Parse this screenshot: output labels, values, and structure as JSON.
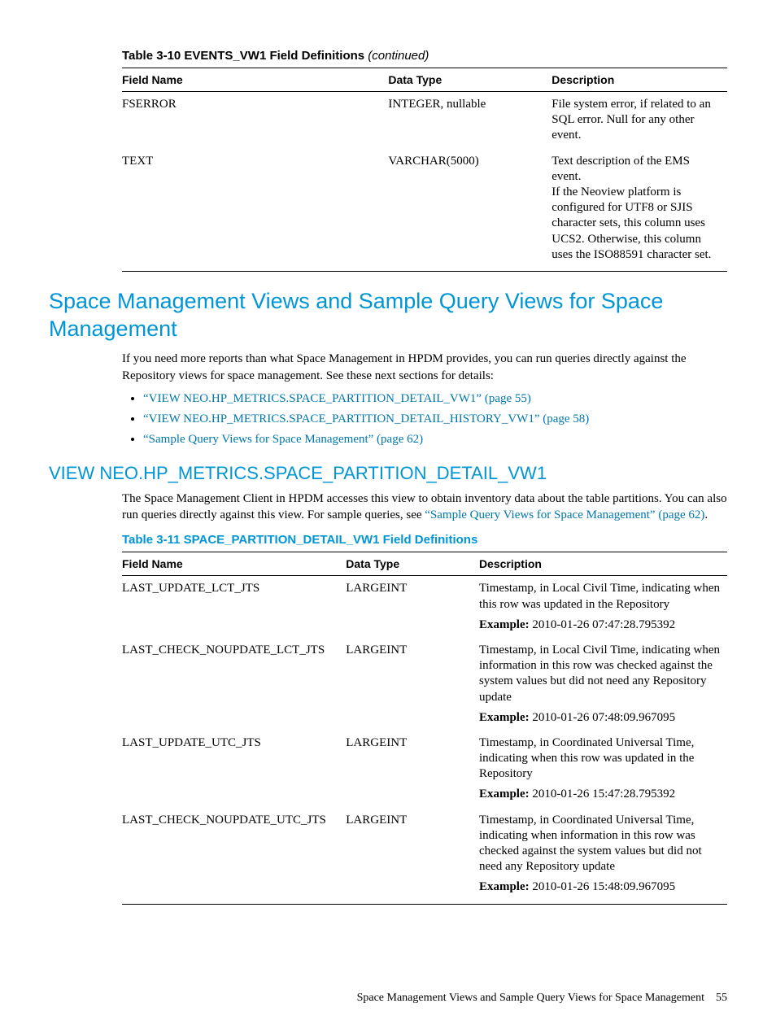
{
  "table1": {
    "caption_prefix": "Table 3-10 EVENTS_VW1 Field Definitions ",
    "caption_suffix": "(continued)",
    "headers": [
      "Field Name",
      "Data Type",
      "Description"
    ],
    "rows": [
      {
        "field": "FSERROR",
        "dtype": "INTEGER, nullable",
        "desc": "File system error, if related to an SQL error. Null for any other event."
      },
      {
        "field": "TEXT",
        "dtype": "VARCHAR(5000)",
        "desc": "Text description of the EMS event.\nIf the Neoview platform is configured for UTF8 or SJIS character sets, this column uses UCS2. Otherwise, this column uses the ISO88591 character set."
      }
    ]
  },
  "section_h1": "Space Management Views and Sample Query Views for Space Management",
  "section_p1": "If you need more reports than what Space Management in HPDM provides, you can run queries directly against the Repository views for space management. See these next sections for details:",
  "links": [
    "“VIEW NEO.HP_METRICS.SPACE_PARTITION_DETAIL_VW1” (page 55)",
    "“VIEW NEO.HP_METRICS.SPACE_PARTITION_DETAIL_HISTORY_VW1” (page 58)",
    "“Sample Query Views for Space Management” (page 62)"
  ],
  "subsection_h2": "VIEW NEO.HP_METRICS.SPACE_PARTITION_DETAIL_VW1",
  "subsection_p_pre": "The Space Management Client in HPDM accesses this view to obtain inventory data about the table partitions. You can also run queries directly against this view. For sample queries, see ",
  "subsection_p_link": "“Sample Query Views for Space Management” (page 62)",
  "subsection_p_post": ".",
  "table2": {
    "title": "Table 3-11 SPACE_PARTITION_DETAIL_VW1 Field Definitions",
    "headers": [
      "Field Name",
      "Data Type",
      "Description"
    ],
    "rows": [
      {
        "field": "LAST_UPDATE_LCT_JTS",
        "dtype": "LARGEINT",
        "desc": "Timestamp, in Local Civil Time, indicating when this row was updated in the Repository",
        "example": "2010-01-26 07:47:28.795392"
      },
      {
        "field": "LAST_CHECK_NOUPDATE_LCT_JTS",
        "dtype": "LARGEINT",
        "desc": "Timestamp, in Local Civil Time, indicating when information in this row was checked against the system values but did not need any Repository update",
        "example": "2010-01-26 07:48:09.967095"
      },
      {
        "field": "LAST_UPDATE_UTC_JTS",
        "dtype": "LARGEINT",
        "desc": "Timestamp, in Coordinated Universal Time, indicating when this row was updated in the Repository",
        "example": "2010-01-26 15:47:28.795392"
      },
      {
        "field": "LAST_CHECK_NOUPDATE_UTC_JTS",
        "dtype": "LARGEINT",
        "desc": "Timestamp, in Coordinated Universal Time, indicating when information in this row was checked against the system values but did not need any Repository update",
        "example": "2010-01-26 15:48:09.967095"
      }
    ]
  },
  "example_label": "Example: ",
  "footer_text": "Space Management Views and Sample Query Views for Space Management",
  "footer_page": "55"
}
